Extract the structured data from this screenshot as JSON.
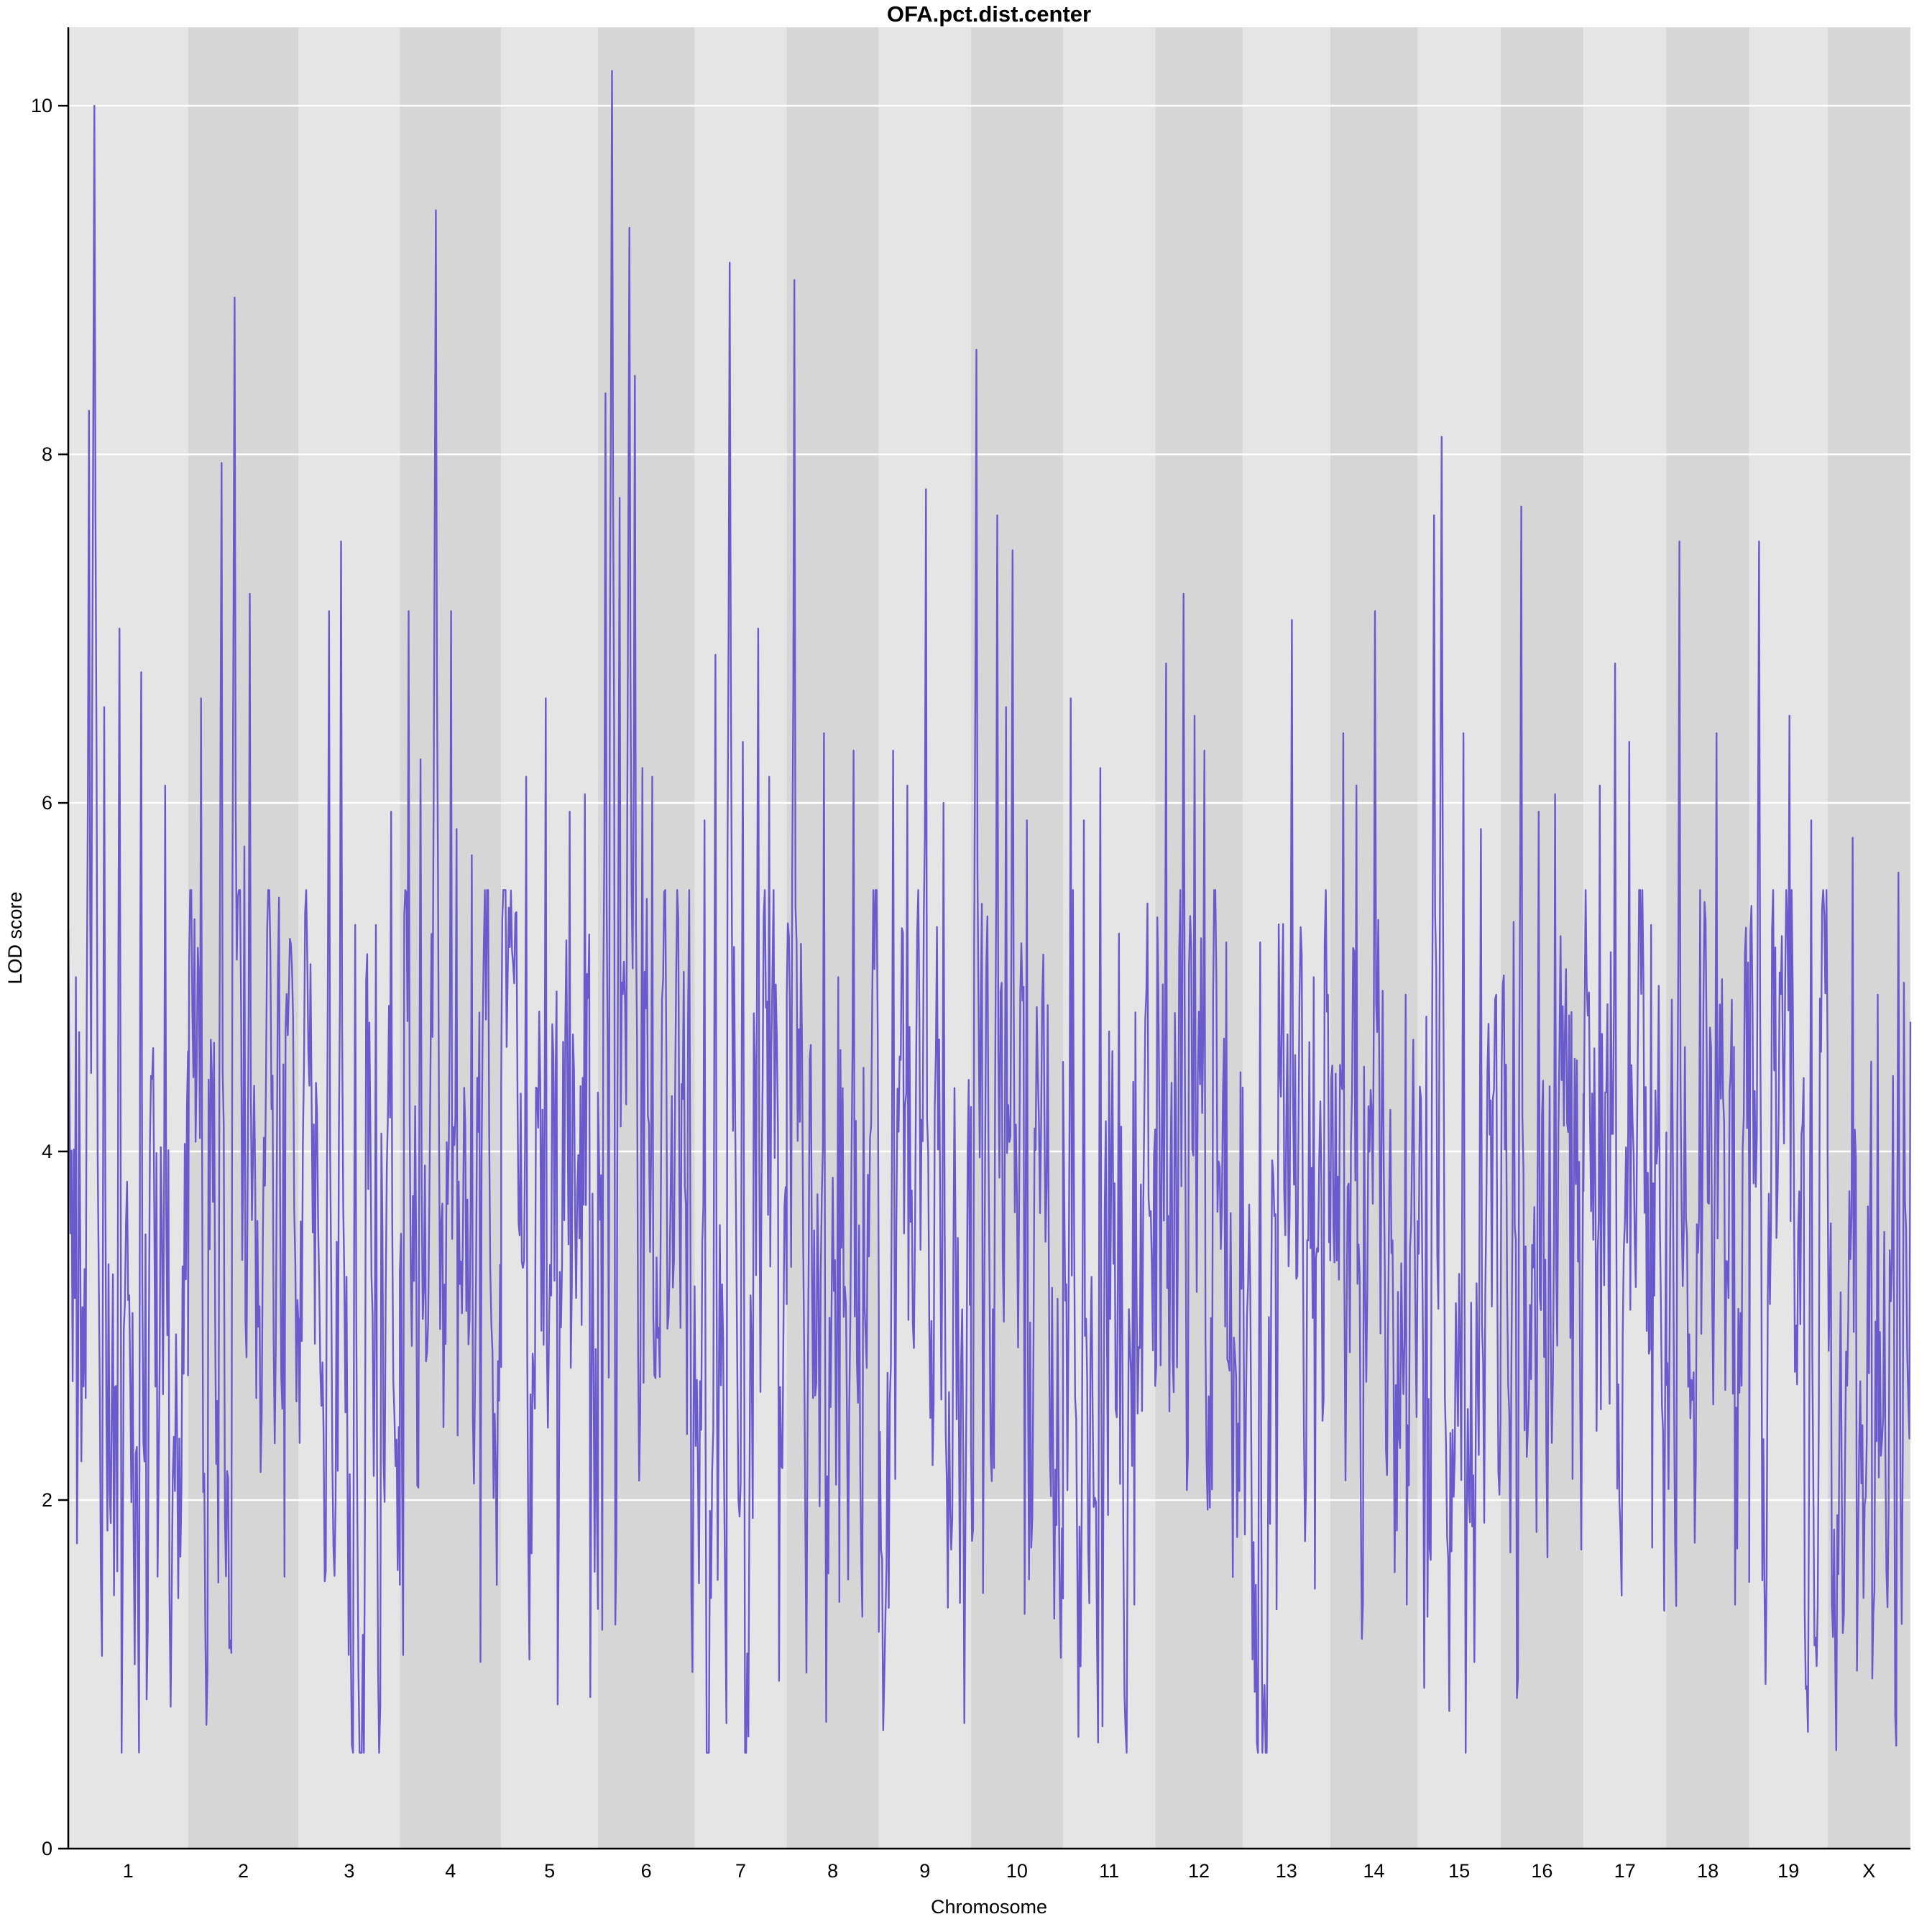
{
  "title": "OFA.pct.dist.center",
  "axes": {
    "x_label": "Chromosome",
    "y_label": "LOD score"
  },
  "style": {
    "line_color": "#6a5acd",
    "band_light": "#e5e5e5",
    "band_dark": "#d6d6d6",
    "grid_color": "#ffffff",
    "axis_color": "#000000",
    "background": "#ffffff"
  },
  "chart_data": {
    "type": "line",
    "title": "OFA.pct.dist.center",
    "xlabel": "Chromosome",
    "ylabel": "LOD score",
    "ylim": [
      0,
      10.45
    ],
    "yticks": [
      0,
      2,
      4,
      6,
      8,
      10
    ],
    "legend": "none",
    "grid": "horizontal-white",
    "baseline": {
      "min": 0.9,
      "max": 5.5,
      "typical": 3.05
    },
    "chromosomes": [
      {
        "label": "1",
        "width": 1.3,
        "peaks": [
          [
            0.06,
            5.0
          ],
          [
            0.17,
            8.25
          ],
          [
            0.22,
            10.0
          ],
          [
            0.3,
            6.55
          ],
          [
            0.42,
            7.0
          ],
          [
            0.6,
            6.75
          ],
          [
            0.8,
            6.1
          ]
        ]
      },
      {
        "label": "2",
        "width": 1.2,
        "peaks": [
          [
            0.12,
            6.6
          ],
          [
            0.3,
            7.95
          ],
          [
            0.42,
            8.9
          ],
          [
            0.5,
            5.75
          ],
          [
            0.55,
            7.2
          ],
          [
            0.85,
            4.5
          ]
        ]
      },
      {
        "label": "3",
        "width": 1.1,
        "peaks": [
          [
            0.3,
            7.1
          ],
          [
            0.42,
            7.5
          ],
          [
            0.55,
            5.3
          ],
          [
            0.75,
            5.3
          ],
          [
            0.9,
            5.95
          ]
        ]
      },
      {
        "label": "4",
        "width": 1.1,
        "peaks": [
          [
            0.08,
            7.1
          ],
          [
            0.2,
            6.25
          ],
          [
            0.35,
            9.4
          ],
          [
            0.5,
            7.1
          ],
          [
            0.55,
            5.85
          ],
          [
            0.7,
            5.7
          ]
        ]
      },
      {
        "label": "5",
        "width": 1.05,
        "peaks": [
          [
            0.25,
            6.15
          ],
          [
            0.45,
            6.6
          ],
          [
            0.7,
            5.95
          ],
          [
            0.85,
            6.05
          ]
        ]
      },
      {
        "label": "6",
        "width": 1.05,
        "peaks": [
          [
            0.08,
            8.35
          ],
          [
            0.14,
            10.2
          ],
          [
            0.22,
            7.75
          ],
          [
            0.32,
            9.3
          ],
          [
            0.38,
            8.45
          ],
          [
            0.45,
            6.2
          ],
          [
            0.55,
            6.15
          ]
        ]
      },
      {
        "label": "7",
        "width": 1.0,
        "peaks": [
          [
            0.1,
            5.9
          ],
          [
            0.22,
            6.85
          ],
          [
            0.38,
            9.1
          ],
          [
            0.52,
            6.35
          ],
          [
            0.68,
            7.0
          ],
          [
            0.8,
            6.15
          ]
        ]
      },
      {
        "label": "8",
        "width": 1.0,
        "peaks": [
          [
            0.08,
            9.0
          ],
          [
            0.4,
            6.4
          ],
          [
            0.55,
            5.0
          ],
          [
            0.72,
            6.3
          ]
        ]
      },
      {
        "label": "9",
        "width": 1.0,
        "peaks": [
          [
            0.15,
            6.3
          ],
          [
            0.3,
            6.1
          ],
          [
            0.5,
            7.8
          ],
          [
            0.7,
            6.0
          ]
        ]
      },
      {
        "label": "10",
        "width": 1.0,
        "peaks": [
          [
            0.06,
            8.6
          ],
          [
            0.28,
            7.65
          ],
          [
            0.38,
            6.55
          ],
          [
            0.45,
            7.45
          ],
          [
            0.6,
            5.9
          ]
        ]
      },
      {
        "label": "11",
        "width": 1.0,
        "peaks": [
          [
            0.08,
            6.6
          ],
          [
            0.22,
            5.9
          ],
          [
            0.4,
            6.2
          ],
          [
            0.6,
            5.25
          ],
          [
            0.75,
            4.4
          ]
        ]
      },
      {
        "label": "12",
        "width": 0.95,
        "peaks": [
          [
            0.12,
            6.8
          ],
          [
            0.32,
            7.2
          ],
          [
            0.45,
            6.5
          ],
          [
            0.55,
            6.3
          ],
          [
            0.8,
            5.2
          ]
        ]
      },
      {
        "label": "13",
        "width": 0.95,
        "peaks": [
          [
            0.2,
            5.2
          ],
          [
            0.55,
            7.05
          ],
          [
            0.8,
            5.0
          ]
        ]
      },
      {
        "label": "14",
        "width": 0.95,
        "peaks": [
          [
            0.15,
            6.4
          ],
          [
            0.3,
            6.1
          ],
          [
            0.5,
            7.1
          ],
          [
            0.85,
            4.9
          ]
        ]
      },
      {
        "label": "15",
        "width": 0.9,
        "peaks": [
          [
            0.2,
            7.65
          ],
          [
            0.28,
            8.1
          ],
          [
            0.55,
            6.4
          ],
          [
            0.75,
            5.85
          ]
        ]
      },
      {
        "label": "16",
        "width": 0.9,
        "peaks": [
          [
            0.25,
            7.7
          ],
          [
            0.45,
            5.95
          ],
          [
            0.65,
            6.05
          ],
          [
            0.85,
            4.8
          ]
        ]
      },
      {
        "label": "17",
        "width": 0.9,
        "peaks": [
          [
            0.2,
            6.1
          ],
          [
            0.38,
            6.8
          ],
          [
            0.55,
            6.35
          ],
          [
            0.8,
            5.3
          ]
        ]
      },
      {
        "label": "18",
        "width": 0.9,
        "peaks": [
          [
            0.15,
            7.5
          ],
          [
            0.4,
            5.5
          ],
          [
            0.6,
            6.4
          ],
          [
            0.8,
            4.6
          ]
        ]
      },
      {
        "label": "19",
        "width": 0.85,
        "peaks": [
          [
            0.12,
            7.5
          ],
          [
            0.5,
            6.5
          ],
          [
            0.78,
            5.9
          ]
        ]
      },
      {
        "label": "X",
        "width": 0.9,
        "peaks": [
          [
            0.3,
            5.8
          ],
          [
            0.6,
            4.9
          ],
          [
            0.85,
            5.6
          ]
        ]
      }
    ]
  }
}
